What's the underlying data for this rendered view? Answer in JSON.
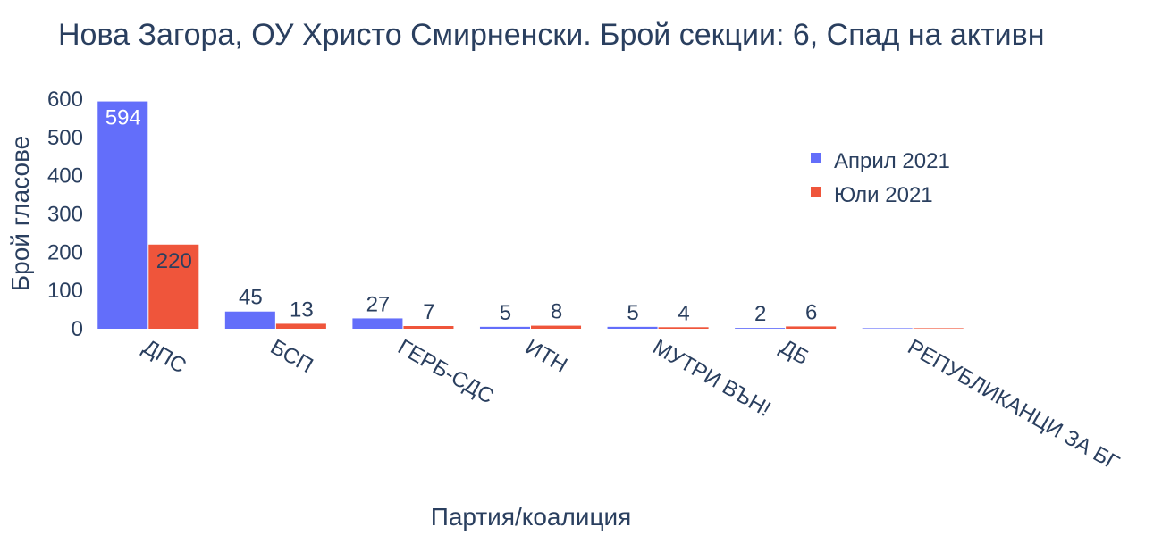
{
  "chart_data": {
    "type": "bar",
    "title": "Нова Загора, ОУ Христо Смирненски. Брой секции: 6,  Спад на активн",
    "xlabel": "Партия/коалиция",
    "ylabel": "Брой гласове",
    "categories": [
      "ДПС",
      "БСП",
      "ГЕРБ-СДС",
      "ИТН",
      "МУТРИ ВЪН!",
      "ДБ",
      "РЕПУБЛИКАНЦИ ЗА БГ"
    ],
    "series": [
      {
        "name": "Април 2021",
        "color": "#636efa",
        "values": [
          594,
          45,
          27,
          5,
          5,
          2,
          0
        ]
      },
      {
        "name": "Юли 2021",
        "color": "#ef553b",
        "values": [
          220,
          13,
          7,
          8,
          4,
          6,
          0
        ]
      }
    ],
    "ylim": [
      0,
      600
    ],
    "yticks": [
      0,
      100,
      200,
      300,
      400,
      500,
      600
    ],
    "legend_position": "top-right",
    "grid": false
  }
}
